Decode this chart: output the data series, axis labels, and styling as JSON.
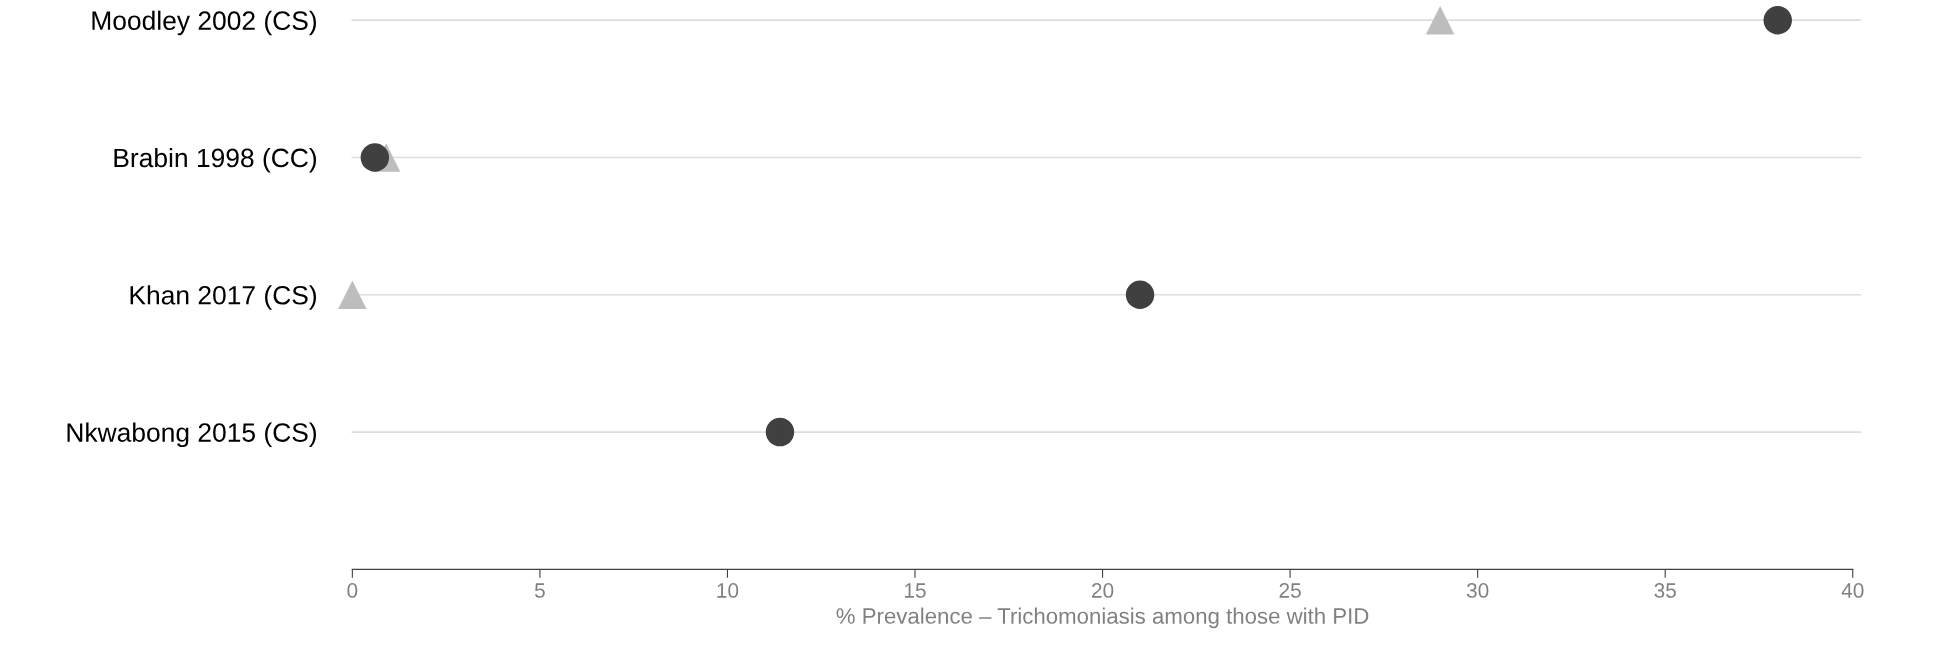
{
  "chart_data": {
    "type": "scatter",
    "orientation": "horizontal",
    "xlabel": "% Prevalence – Trichomoniasis among those with PID",
    "categories": [
      "Moodley 2002 (CS)",
      "Brabin 1998 (CC)",
      "Khan 2017 (CS)",
      "Nkwabong 2015 (CS)"
    ],
    "series": [
      {
        "color": "#404040",
        "marker": "circle",
        "values": [
          38.0,
          0.6,
          21.0,
          11.4
        ]
      },
      {
        "color": "#bdbdbd",
        "marker": "triangle",
        "values": [
          29.0,
          0.9,
          0.0,
          null
        ]
      }
    ],
    "xlim": [
      0,
      40
    ],
    "xticks": [
      0,
      5,
      10,
      15,
      20,
      25,
      30,
      35,
      40
    ],
    "grid": "y",
    "legend": false
  }
}
